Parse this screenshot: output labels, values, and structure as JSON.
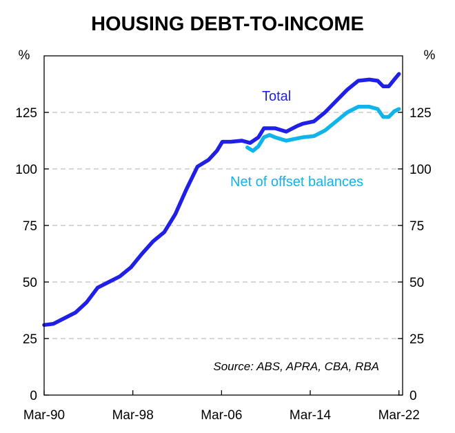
{
  "chart_data": {
    "type": "line",
    "title": "HOUSING DEBT-TO-INCOME",
    "ylabel_left": "%",
    "ylabel_right": "%",
    "ylim": [
      0,
      150
    ],
    "yticks": [
      0,
      25,
      50,
      75,
      100,
      125
    ],
    "xlim": [
      1990.17,
      2022.5
    ],
    "xticks": [
      {
        "label": "Mar-90",
        "x": 1990.17
      },
      {
        "label": "Mar-98",
        "x": 1998.17
      },
      {
        "label": "Mar-06",
        "x": 2006.17
      },
      {
        "label": "Mar-14",
        "x": 2014.17
      },
      {
        "label": "Mar-22",
        "x": 2022.17
      }
    ],
    "grid": true,
    "source": "Source: ABS, APRA, CBA, RBA",
    "series": [
      {
        "name": "Total",
        "color": "#1f1fe6",
        "points": [
          [
            1990.17,
            31
          ],
          [
            1991.0,
            31.5
          ],
          [
            1992.0,
            34
          ],
          [
            1993.0,
            36.5
          ],
          [
            1994.0,
            41
          ],
          [
            1995.0,
            47.5
          ],
          [
            1996.0,
            50
          ],
          [
            1997.0,
            52.5
          ],
          [
            1998.0,
            56.5
          ],
          [
            1999.0,
            62.5
          ],
          [
            2000.0,
            68
          ],
          [
            2001.0,
            72
          ],
          [
            2002.0,
            80
          ],
          [
            2003.0,
            91
          ],
          [
            2004.0,
            101
          ],
          [
            2005.0,
            104
          ],
          [
            2005.75,
            108
          ],
          [
            2006.25,
            112
          ],
          [
            2007.0,
            112
          ],
          [
            2008.0,
            112.5
          ],
          [
            2008.75,
            111.5
          ],
          [
            2009.5,
            114
          ],
          [
            2010.0,
            118
          ],
          [
            2011.0,
            118
          ],
          [
            2012.0,
            116.5
          ],
          [
            2013.0,
            119
          ],
          [
            2013.5,
            120
          ],
          [
            2014.5,
            121
          ],
          [
            2015.5,
            125
          ],
          [
            2016.5,
            130
          ],
          [
            2017.5,
            135
          ],
          [
            2018.5,
            139
          ],
          [
            2019.5,
            139.5
          ],
          [
            2020.25,
            139
          ],
          [
            2020.75,
            136.5
          ],
          [
            2021.25,
            136.5
          ],
          [
            2021.75,
            139.5
          ],
          [
            2022.17,
            142
          ]
        ]
      },
      {
        "name": "Net of offset balances",
        "color": "#0fb4ea",
        "points": [
          [
            2008.5,
            109.5
          ],
          [
            2009.0,
            108
          ],
          [
            2009.5,
            110
          ],
          [
            2010.0,
            114
          ],
          [
            2010.5,
            115
          ],
          [
            2011.0,
            114
          ],
          [
            2012.0,
            112.5
          ],
          [
            2013.0,
            113.5
          ],
          [
            2013.5,
            114
          ],
          [
            2014.5,
            114.5
          ],
          [
            2015.5,
            117
          ],
          [
            2016.5,
            121
          ],
          [
            2017.5,
            125
          ],
          [
            2018.5,
            127.5
          ],
          [
            2019.5,
            127.5
          ],
          [
            2020.25,
            126.5
          ],
          [
            2020.75,
            123
          ],
          [
            2021.25,
            123
          ],
          [
            2021.75,
            125.5
          ],
          [
            2022.17,
            126.5
          ]
        ]
      }
    ]
  }
}
